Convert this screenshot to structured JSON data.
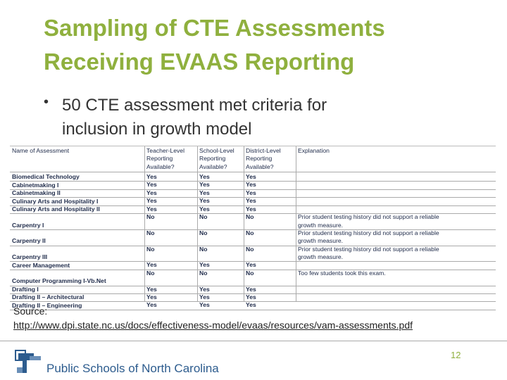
{
  "title": [
    "Sampling of CTE Assessments",
    "Receiving EVAAS Reporting"
  ],
  "bullet": [
    "50 CTE assessment met criteria for",
    "inclusion in growth model"
  ],
  "table": {
    "headers": [
      [
        "Name of Assessment"
      ],
      [
        "Teacher-Level",
        "Reporting",
        "Available?"
      ],
      [
        "School-Level",
        "Reporting",
        "Available?"
      ],
      [
        "District-Level",
        "Reporting",
        "Available?"
      ],
      [
        "Explanation"
      ]
    ],
    "rows": [
      [
        "Biomedical Technology",
        "Yes",
        "Yes",
        "Yes"
      ],
      [
        "Cabinetmaking I",
        "Yes",
        "Yes",
        "Yes"
      ],
      [
        "Cabinetmaking II",
        "Yes",
        "Yes",
        "Yes"
      ],
      [
        "Culinary Arts and Hospitality I",
        "Yes",
        "Yes",
        "Yes"
      ],
      [
        "Culinary Arts and Hospitality II",
        "Yes",
        "Yes",
        "Yes"
      ],
      [
        "Carpentry I",
        "No",
        "No",
        "No",
        [
          "Prior student testing history did not support a reliable",
          "growth measure."
        ]
      ],
      [
        "Carpentry II",
        "No",
        "No",
        "No",
        [
          "Prior student testing history did not support a reliable",
          "growth measure."
        ]
      ],
      [
        "Carpentry III",
        "No",
        "No",
        "No",
        [
          "Prior student testing history did not support a reliable",
          "growth measure."
        ]
      ],
      [
        "Career Management",
        "Yes",
        "Yes",
        "Yes"
      ],
      [
        "Computer Programming I-Vb.Net",
        "No",
        "No",
        "No",
        [
          "Too few students took this exam."
        ]
      ],
      [
        "Drafting I",
        "Yes",
        "Yes",
        "Yes"
      ],
      [
        "Drafting II – Architectural",
        "Yes",
        "Yes",
        "Yes"
      ],
      [
        "Drafting II – Engineering",
        "Yes",
        "Yes",
        "Yes"
      ]
    ]
  },
  "source": {
    "label": "Source:",
    "url": "http://www.dpi.state.nc.us/docs/effectiveness-model/evaas/resources/vam-assessments.pdf"
  },
  "page_number": "12",
  "footer": "Public Schools of North Carolina"
}
